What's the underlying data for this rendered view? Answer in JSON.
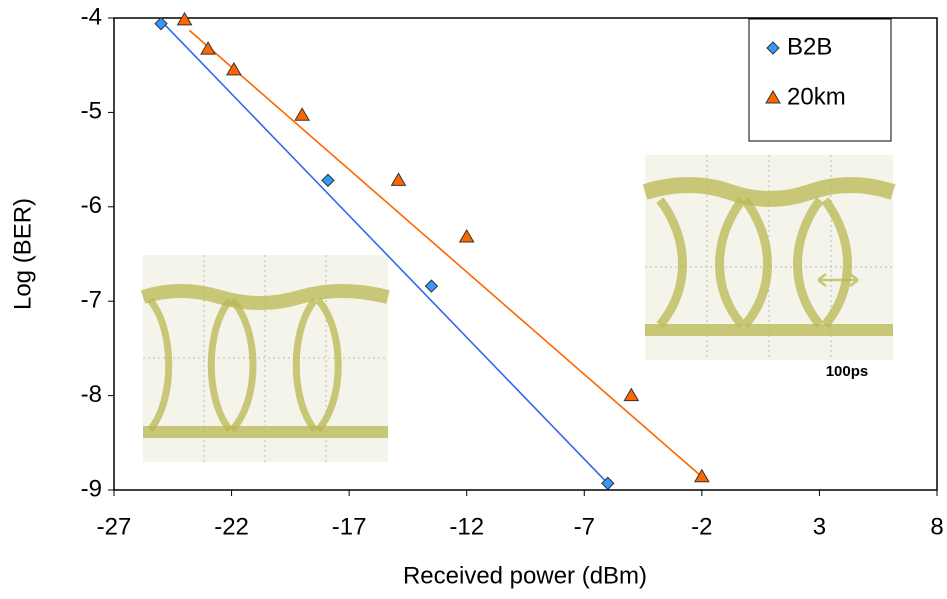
{
  "chart_data": {
    "type": "scatter",
    "x_label": "Received power (dBm)",
    "y_label": "Log (BER)",
    "xlim": [
      -27,
      8
    ],
    "xticks": [
      -27,
      -22,
      -17,
      -12,
      -7,
      -2,
      3,
      8
    ],
    "ylim": [
      -9,
      -4
    ],
    "yticks": [
      -4,
      -5,
      -6,
      -7,
      -8,
      -9
    ],
    "legend": "top-right",
    "annotation": "100ps",
    "series": [
      {
        "name": "B2B",
        "color": "#3399ff",
        "marker": "diamond",
        "x": [
          -25,
          -17.9,
          -13.5,
          -6.0
        ],
        "values": [
          -4.06,
          -5.72,
          -6.84,
          -8.93
        ],
        "fit_x": [
          -25,
          -6.0
        ],
        "fit_y": [
          -4.03,
          -8.93
        ],
        "fit_color": "#3366ee"
      },
      {
        "name": "20km",
        "color": "#ff6600",
        "marker": "triangle",
        "x": [
          -24,
          -23,
          -21.9,
          -19.0,
          -14.9,
          -12.0,
          -5.0,
          -2.0
        ],
        "values": [
          -4.02,
          -4.33,
          -4.55,
          -5.03,
          -5.72,
          -6.32,
          -8.0,
          -8.86
        ],
        "fit_x": [
          -23.8,
          -2.0
        ],
        "fit_y": [
          -4.13,
          -8.86
        ],
        "fit_color": "#ff6600"
      }
    ]
  }
}
